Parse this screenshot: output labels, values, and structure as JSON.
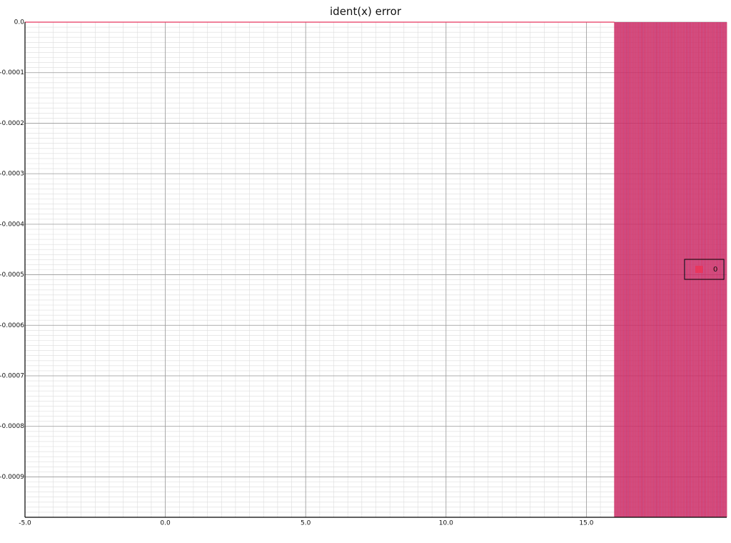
{
  "chart_data": {
    "type": "area",
    "title": "ident(x) error",
    "xlabel": "",
    "ylabel": "",
    "xlim": [
      -5.0,
      20.0
    ],
    "ylim": [
      -0.00098,
      0.0
    ],
    "x_ticks": [
      "-5.0",
      "0.0",
      "5.0",
      "10.0",
      "15.0"
    ],
    "y_ticks": [
      "0.0",
      "-0.0001",
      "-0.0002",
      "-0.0003",
      "-0.0004",
      "-0.0005",
      "-0.0006",
      "-0.0007",
      "-0.0008",
      "-0.0009"
    ],
    "grid": true,
    "legend_position": "right",
    "series": [
      {
        "name": "0",
        "color": "#e8365d",
        "note_x_range": [
          -5.0,
          20.0
        ],
        "zero_until_x": 16.0,
        "oscillation_x_range": [
          16.0,
          20.0
        ],
        "oscillation_min_y": -0.00098,
        "oscillation_max_y": 0.0
      }
    ]
  }
}
